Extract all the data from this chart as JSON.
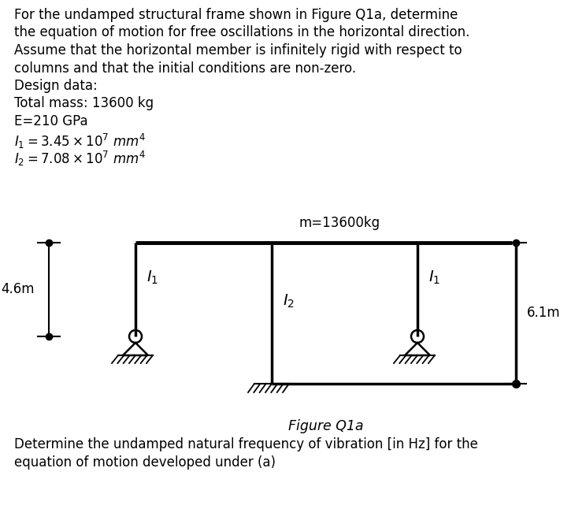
{
  "text_lines": [
    "For the undamped structural frame shown in Figure Q1a, determine",
    "the equation of motion for free oscillations in the horizontal direction.",
    "Assume that the horizontal member is infinitely rigid with respect to",
    "columns and that the initial conditions are non-zero.",
    "Design data:",
    "Total mass: 13600 kg",
    "E=210 GPa"
  ],
  "bottom_text": [
    "Determine the undamped natural frequency of vibration [in Hz] for the",
    "equation of motion developed under (a)"
  ],
  "figure_label": "Figure Q1a",
  "mass_label": "m=13600kg",
  "dim_left": "4.6m",
  "dim_right": "6.1m",
  "bg_color": "#ffffff",
  "line_color": "#000000",
  "fontsize_main": 12.0,
  "fontsize_math": 12.5
}
